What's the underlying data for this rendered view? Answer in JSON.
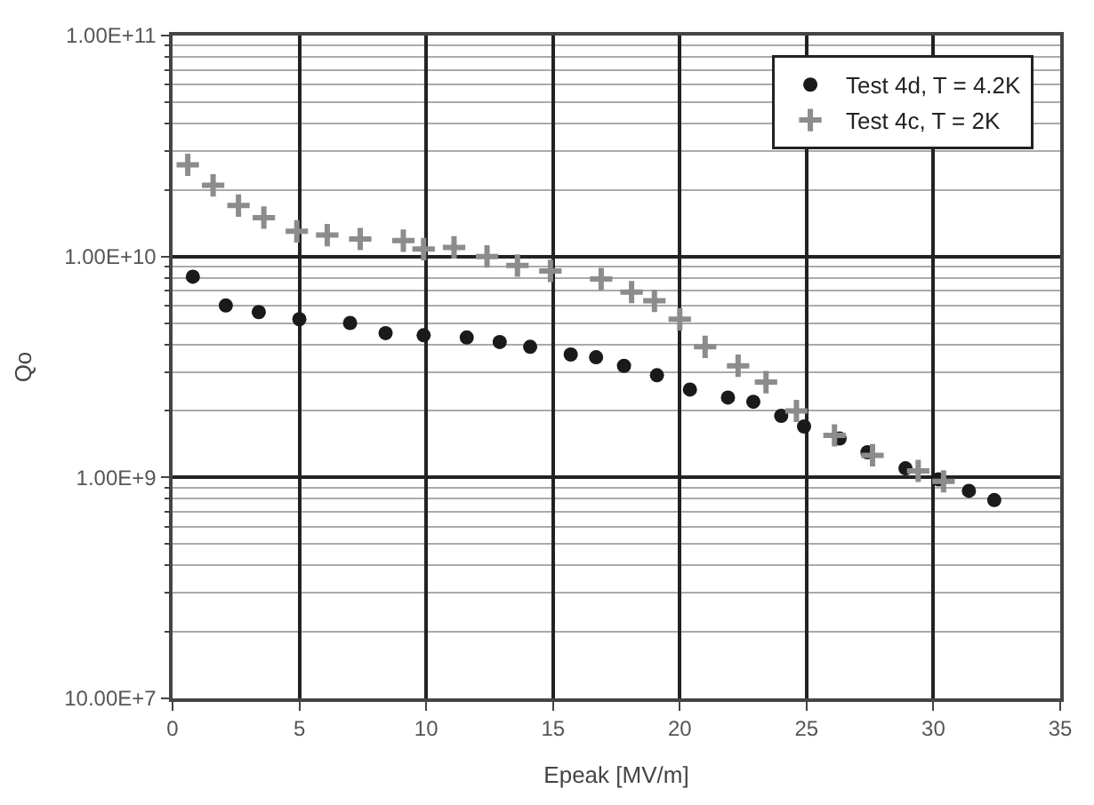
{
  "chart_data": {
    "type": "scatter",
    "xlabel": "Epeak [MV/m]",
    "ylabel": "Qo",
    "log": "y",
    "grid": true,
    "legend": "top right",
    "xlim": [
      0,
      35
    ],
    "xticks": [
      0,
      5,
      10,
      15,
      20,
      25,
      30,
      35
    ],
    "ylim": [
      100000000,
      100000000000
    ],
    "yticks": [
      {
        "value": 100000000,
        "label": "10.00E+7"
      },
      {
        "value": 200000000,
        "label": null
      },
      {
        "value": 300000000,
        "label": null
      },
      {
        "value": 400000000,
        "label": null
      },
      {
        "value": 500000000,
        "label": null
      },
      {
        "value": 600000000,
        "label": null
      },
      {
        "value": 700000000,
        "label": null
      },
      {
        "value": 800000000,
        "label": null
      },
      {
        "value": 900000000,
        "label": null
      },
      {
        "value": 1000000000,
        "label": "1.00E+9"
      },
      {
        "value": 2000000000,
        "label": null
      },
      {
        "value": 3000000000,
        "label": null
      },
      {
        "value": 4000000000,
        "label": null
      },
      {
        "value": 5000000000,
        "label": null
      },
      {
        "value": 6000000000,
        "label": null
      },
      {
        "value": 7000000000,
        "label": null
      },
      {
        "value": 8000000000,
        "label": null
      },
      {
        "value": 9000000000,
        "label": null
      },
      {
        "value": 10000000000,
        "label": "1.00E+10"
      },
      {
        "value": 20000000000,
        "label": null
      },
      {
        "value": 30000000000,
        "label": null
      },
      {
        "value": 40000000000,
        "label": null
      },
      {
        "value": 50000000000,
        "label": null
      },
      {
        "value": 60000000000,
        "label": null
      },
      {
        "value": 70000000000,
        "label": null
      },
      {
        "value": 80000000000,
        "label": null
      },
      {
        "value": 90000000000,
        "label": null
      },
      {
        "value": 100000000000,
        "label": "1.00E+11"
      }
    ],
    "series": [
      {
        "name": "Test 4d, T = 4.2K",
        "color": "#1a1a1a",
        "marker": "circle",
        "x": [
          0.8,
          2.1,
          3.4,
          5.0,
          7.0,
          8.4,
          9.9,
          11.6,
          12.9,
          14.1,
          15.7,
          16.7,
          17.8,
          19.1,
          20.4,
          21.9,
          22.9,
          24.0,
          24.9,
          26.3,
          27.4,
          28.9,
          30.2,
          31.4,
          32.4
        ],
        "values": [
          8100000000,
          6000000000,
          5600000000,
          5200000000,
          5000000000,
          4500000000,
          4400000000,
          4300000000,
          4100000000,
          3900000000,
          3600000000,
          3500000000,
          3200000000,
          2900000000,
          2500000000,
          2300000000,
          2200000000,
          1900000000,
          1700000000,
          1500000000,
          1300000000,
          1100000000,
          980000000,
          870000000,
          790000000
        ]
      },
      {
        "name": "Test 4c, T = 2K",
        "color": "#8c8c8c",
        "marker": "cross",
        "x": [
          0.6,
          1.6,
          2.6,
          3.6,
          4.9,
          6.1,
          7.4,
          9.1,
          9.9,
          11.1,
          12.4,
          13.6,
          14.9,
          16.9,
          18.1,
          19.0,
          20.0,
          21.0,
          22.3,
          23.4,
          24.6,
          26.1,
          27.6,
          29.4,
          30.4
        ],
        "values": [
          26000000000,
          21000000000,
          17000000000,
          15000000000,
          13000000000,
          12500000000,
          12000000000,
          11800000000,
          10800000000,
          11000000000,
          10000000000,
          9100000000,
          8600000000,
          7900000000,
          6900000000,
          6300000000,
          5200000000,
          3900000000,
          3200000000,
          2700000000,
          2000000000,
          1550000000,
          1260000000,
          1070000000,
          960000000
        ]
      }
    ]
  }
}
